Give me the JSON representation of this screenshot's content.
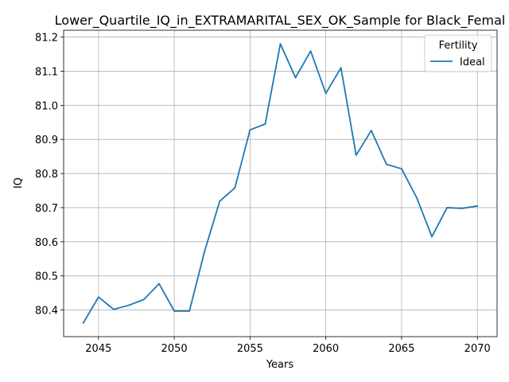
{
  "chart_data": {
    "type": "line",
    "title": "Lower_Quartile_IQ_in_EXTRAMARITAL_SEX_OK_Sample for Black_Femal",
    "xlabel": "Years",
    "ylabel": "IQ",
    "xlim": [
      2042.7,
      2071.3
    ],
    "ylim": [
      80.322,
      81.22
    ],
    "xticks": [
      2045,
      2050,
      2055,
      2060,
      2065,
      2070
    ],
    "yticks": [
      80.4,
      80.5,
      80.6,
      80.7,
      80.8,
      80.9,
      81.0,
      81.1,
      81.2
    ],
    "ytick_labels": [
      "80.4",
      "80.5",
      "80.6",
      "80.7",
      "80.8",
      "80.9",
      "81.0",
      "81.1",
      "81.2"
    ],
    "grid": true,
    "legend": {
      "title": "Fertility",
      "position": "top-right"
    },
    "x": [
      2044,
      2045,
      2046,
      2047,
      2048,
      2049,
      2050,
      2051,
      2052,
      2053,
      2054,
      2055,
      2056,
      2057,
      2058,
      2059,
      2060,
      2061,
      2062,
      2063,
      2064,
      2065,
      2066,
      2067,
      2068,
      2069,
      2070
    ],
    "series": [
      {
        "name": "Ideal",
        "color": "#1f77b4",
        "values": [
          80.362,
          80.438,
          80.402,
          80.414,
          80.431,
          80.477,
          80.397,
          80.397,
          80.572,
          80.719,
          80.758,
          80.928,
          80.945,
          81.18,
          81.081,
          81.159,
          81.035,
          81.11,
          80.854,
          80.926,
          80.827,
          80.814,
          80.729,
          80.615,
          80.7,
          80.698,
          80.705
        ]
      }
    ]
  }
}
